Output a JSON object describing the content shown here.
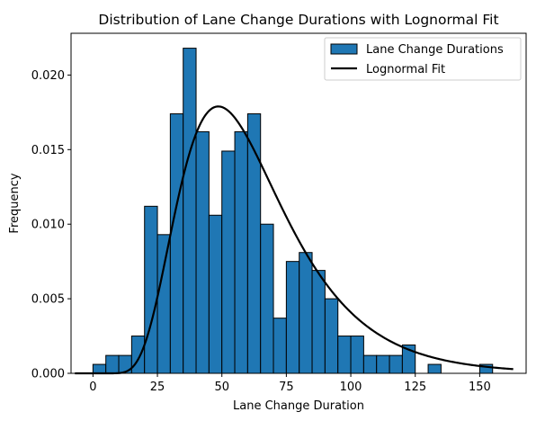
{
  "chart_data": {
    "type": "bar",
    "title": "Distribution of Lane Change Durations with Lognormal Fit",
    "xlabel": "Lane Change Duration",
    "ylabel": "Frequency",
    "xlim": [
      -8.5,
      168
    ],
    "ylim": [
      0,
      0.0228
    ],
    "xticks": [
      0,
      25,
      50,
      75,
      100,
      125,
      150
    ],
    "yticks": [
      0.0,
      0.005,
      0.01,
      0.015,
      0.02
    ],
    "ytick_labels": [
      "0.000",
      "0.005",
      "0.010",
      "0.015",
      "0.020"
    ],
    "bin_width": 5,
    "bins": [
      {
        "start": 0,
        "value": 0.0006
      },
      {
        "start": 5,
        "value": 0.0012
      },
      {
        "start": 10,
        "value": 0.0012
      },
      {
        "start": 15,
        "value": 0.0025
      },
      {
        "start": 20,
        "value": 0.0112
      },
      {
        "start": 25,
        "value": 0.0093
      },
      {
        "start": 30,
        "value": 0.0174
      },
      {
        "start": 35,
        "value": 0.0218
      },
      {
        "start": 40,
        "value": 0.0162
      },
      {
        "start": 45,
        "value": 0.0106
      },
      {
        "start": 50,
        "value": 0.0149
      },
      {
        "start": 55,
        "value": 0.0162
      },
      {
        "start": 60,
        "value": 0.0174
      },
      {
        "start": 65,
        "value": 0.01
      },
      {
        "start": 70,
        "value": 0.0037
      },
      {
        "start": 75,
        "value": 0.0075
      },
      {
        "start": 80,
        "value": 0.0081
      },
      {
        "start": 85,
        "value": 0.0069
      },
      {
        "start": 90,
        "value": 0.005
      },
      {
        "start": 95,
        "value": 0.0025
      },
      {
        "start": 100,
        "value": 0.0025
      },
      {
        "start": 105,
        "value": 0.0012
      },
      {
        "start": 110,
        "value": 0.0012
      },
      {
        "start": 115,
        "value": 0.0012
      },
      {
        "start": 120,
        "value": 0.0019
      },
      {
        "start": 130,
        "value": 0.0006
      },
      {
        "start": 150,
        "value": 0.0006
      }
    ],
    "fit": {
      "name": "Lognormal Fit",
      "type": "lognormal",
      "mu": 4.06,
      "sigma": 0.42,
      "x_range": [
        -7,
        163
      ]
    },
    "series": [
      {
        "name": "Lane Change Durations",
        "kind": "histogram",
        "color": "#1f77b4",
        "edgecolor": "#000000"
      },
      {
        "name": "Lognormal Fit",
        "kind": "line",
        "color": "#000000"
      }
    ],
    "legend": {
      "position": "top-right",
      "entries": [
        "Lane Change Durations",
        "Lognormal Fit"
      ]
    }
  }
}
